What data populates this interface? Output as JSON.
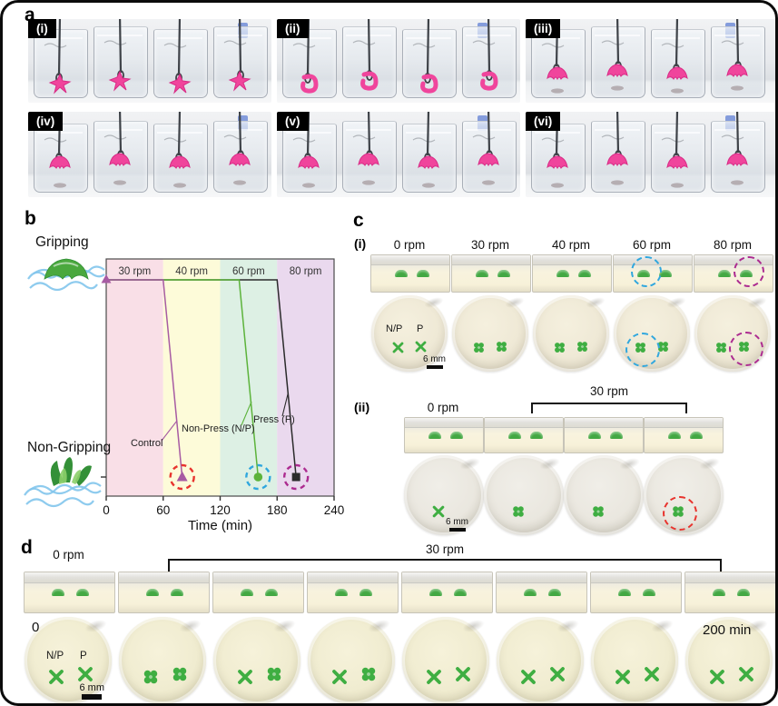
{
  "chart_data": {
    "type": "line",
    "title": "",
    "xlabel": "Time (min)",
    "xlim": [
      0,
      240
    ],
    "xticks": [
      "0",
      "60",
      "120",
      "180",
      "240"
    ],
    "grid": false,
    "legend_position": "none",
    "state_labels": {
      "top": "Gripping",
      "bottom": "Non-Gripping"
    },
    "zones": [
      {
        "label": "30 rpm",
        "from": 0,
        "to": 60,
        "color": "#f9dfe7"
      },
      {
        "label": "40 rpm",
        "from": 60,
        "to": 120,
        "color": "#fdfbd9"
      },
      {
        "label": "60 rpm",
        "from": 120,
        "to": 180,
        "color": "#ddf0e4"
      },
      {
        "label": "80 rpm",
        "from": 180,
        "to": 240,
        "color": "#ead9ee"
      }
    ],
    "series": [
      {
        "name": "Control",
        "color": "#a75ba3",
        "marker": "triangle",
        "x": [
          0,
          60,
          80
        ],
        "y": [
          "Gripping",
          "Gripping",
          "Non-Gripping"
        ],
        "end_circle": "#e8332d"
      },
      {
        "name": "Non-Press (N/P)",
        "color": "#5cb33b",
        "marker": "circle",
        "x": [
          0,
          140,
          160
        ],
        "y": [
          "Gripping",
          "Gripping",
          "Non-Gripping"
        ],
        "end_circle": "#30a7de"
      },
      {
        "name": "Press (P)",
        "color": "#2b2b2b",
        "marker": "square",
        "x": [
          0,
          180,
          200
        ],
        "y": [
          "Gripping",
          "Gripping",
          "Non-Gripping"
        ],
        "end_circle": "#ac2b90"
      }
    ]
  },
  "panels": {
    "a": {
      "label": "a",
      "beakers_per_tile": 4,
      "tiles": [
        {
          "tag": "(i)",
          "variant": "open"
        },
        {
          "tag": "(ii)",
          "variant": "curl"
        },
        {
          "tag": "(iii)",
          "variant": "blob"
        },
        {
          "tag": "(iv)",
          "variant": "hang"
        },
        {
          "tag": "(v)",
          "variant": "hang"
        },
        {
          "tag": "(vi)",
          "variant": "hang"
        }
      ]
    },
    "b": {
      "label": "b"
    },
    "c": {
      "label": "c",
      "i": {
        "tag": "(i)",
        "np_label": "N/P",
        "p_label": "P",
        "scale_label": "6 mm",
        "columns": [
          {
            "rpm": "0 rpm",
            "marks": [
              "x",
              "x"
            ],
            "circle": null
          },
          {
            "rpm": "30 rpm",
            "marks": [
              "clover",
              "clover"
            ],
            "circle": null
          },
          {
            "rpm": "40 rpm",
            "marks": [
              "clover",
              "clover"
            ],
            "circle": null
          },
          {
            "rpm": "60 rpm",
            "marks": [
              "clover",
              "clover"
            ],
            "circle": "#30a7de",
            "circle_on": "left"
          },
          {
            "rpm": "80 rpm",
            "marks": [
              "clover",
              "clover"
            ],
            "circle": "#ac2b90",
            "circle_on": "right"
          }
        ]
      },
      "ii": {
        "tag": "(ii)",
        "first_label": "0 rpm",
        "bracket_label": "30 rpm",
        "scale_label": "6 mm",
        "columns": [
          {
            "mark": "x",
            "circle": null
          },
          {
            "mark": "clover",
            "circle": null
          },
          {
            "mark": "clover",
            "circle": null
          },
          {
            "mark": "clover",
            "circle": "#e8332d"
          }
        ]
      }
    },
    "d": {
      "label": "d",
      "first_label": "0 rpm",
      "bracket_label": "30 rpm",
      "time_start_label": "0",
      "time_end_label": "200 min",
      "np_label": "N/P",
      "p_label": "P",
      "scale_label": "6 mm",
      "columns": [
        {
          "marks": [
            "x",
            "x"
          ]
        },
        {
          "marks": [
            "clover",
            "clover"
          ]
        },
        {
          "marks": [
            "x",
            "clover"
          ]
        },
        {
          "marks": [
            "x",
            "clover"
          ]
        },
        {
          "marks": [
            "x",
            "x"
          ]
        },
        {
          "marks": [
            "x",
            "x"
          ]
        },
        {
          "marks": [
            "x",
            "x"
          ]
        },
        {
          "marks": [
            "x",
            "x"
          ]
        }
      ]
    }
  },
  "colors": {
    "gripper_pink": "#f0459c",
    "gripper_pink_dark": "#d82c86",
    "mark_green": "#3fae42",
    "dome_green": "#43a843",
    "fiber_blue": "#82c5ec",
    "illu_green": "#4aa83e",
    "illu_green_dark": "#349038",
    "wire_gray": "#3e4248"
  }
}
